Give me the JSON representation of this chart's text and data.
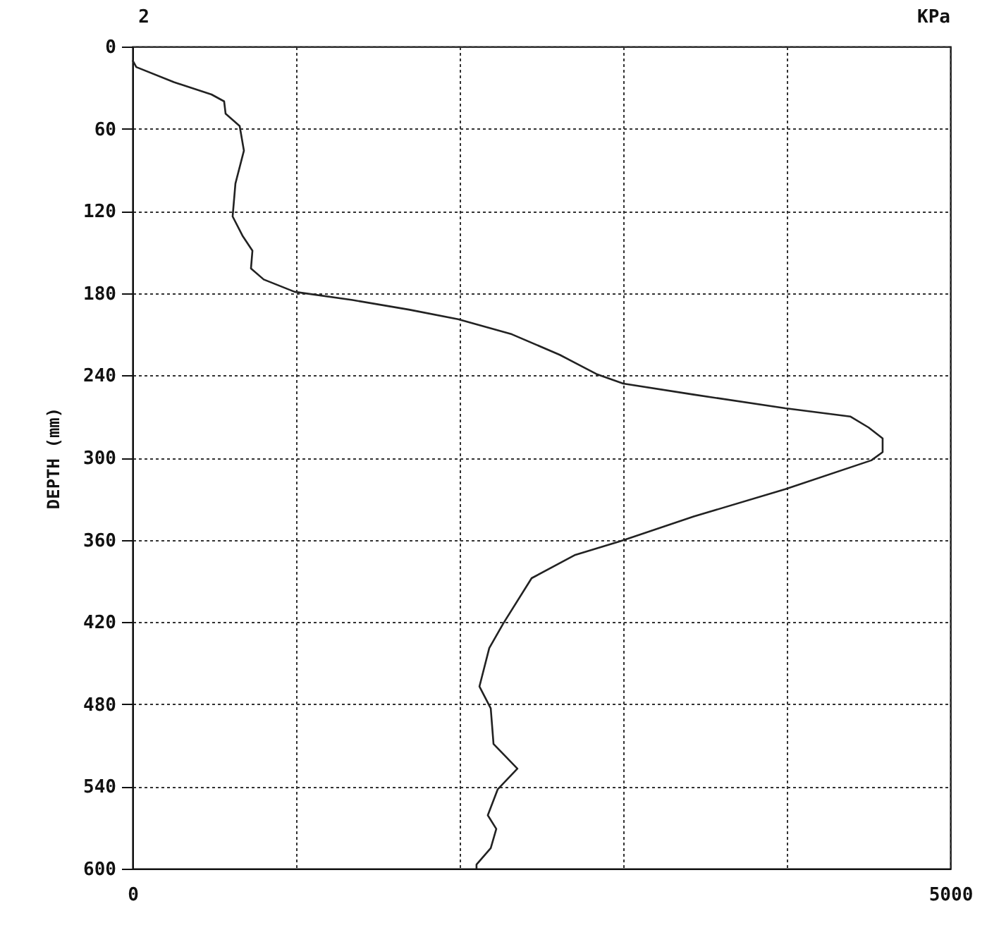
{
  "chart_data": {
    "type": "line",
    "xlabel": "KPa",
    "ylabel": "DEPTH (mm)",
    "annotations": [
      "2"
    ],
    "x": [
      0,
      23,
      253,
      483,
      560,
      569,
      655,
      681,
      629,
      612,
      672,
      733,
      724,
      802,
      991,
      1345,
      1690,
      1991,
      2319,
      2612,
      2836,
      3000,
      3431,
      3991,
      4388,
      4500,
      4586,
      4586,
      4517,
      3991,
      3431,
      2983,
      2707,
      2440,
      2267,
      2181,
      2121,
      2190,
      2207,
      2353,
      2233,
      2172,
      2224,
      2190,
      2103,
      2103
    ],
    "series": [
      {
        "color": "#222222",
        "values": [
          10,
          15,
          26,
          35,
          40,
          49,
          58,
          76,
          100,
          124,
          138,
          149,
          162,
          170,
          179,
          185,
          192,
          199,
          210,
          225,
          239,
          246,
          254,
          264,
          270,
          278,
          286,
          296,
          302,
          323,
          343,
          361,
          371,
          388,
          421,
          439,
          467,
          483,
          509,
          527,
          542,
          561,
          571,
          585,
          597,
          600
        ]
      }
    ],
    "xlim": [
      0,
      5000
    ],
    "ylim": [
      600,
      0
    ],
    "xticks": [
      0,
      {
        "value": 1000,
        "label": null
      },
      {
        "value": 2000,
        "label": null
      },
      {
        "value": 3000,
        "label": null
      },
      {
        "value": 4000,
        "label": null
      },
      5000
    ],
    "yticks": [
      0,
      60,
      120,
      180,
      240,
      300,
      360,
      420,
      480,
      540,
      600
    ],
    "grid": true
  }
}
